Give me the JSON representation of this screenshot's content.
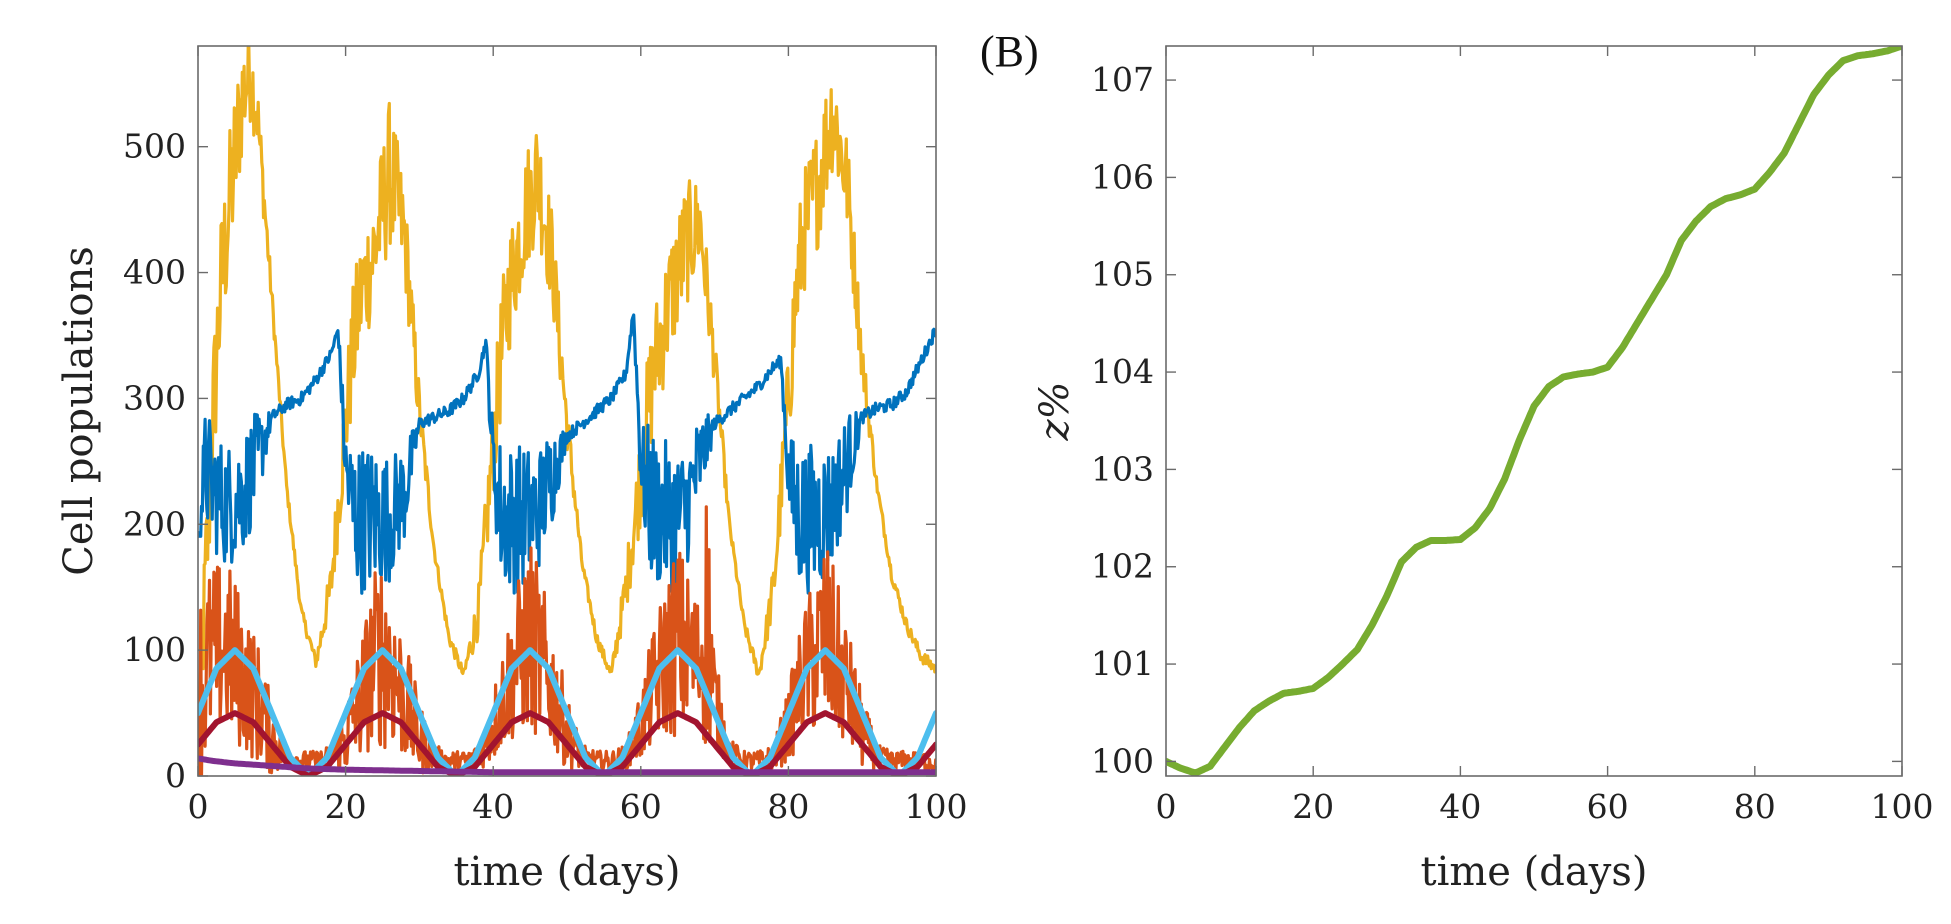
{
  "chart_data": [
    {
      "type": "line",
      "panel": "",
      "title": "",
      "xlabel": "time (days)",
      "ylabel": "Cell populations",
      "xlim": [
        0,
        100
      ],
      "ylim": [
        0,
        580
      ],
      "xticks": [
        0,
        20,
        40,
        60,
        80,
        100
      ],
      "yticks": [
        0,
        100,
        200,
        300,
        400,
        500
      ],
      "grid": false,
      "legend": "none",
      "series": [
        {
          "color": "#EDB120",
          "style": "noisy",
          "x": [
            0,
            1,
            2,
            3,
            4,
            5,
            6,
            7,
            8,
            10,
            12,
            14,
            16,
            18,
            20,
            21,
            22,
            24,
            26,
            28,
            30,
            32,
            34,
            36,
            38,
            40,
            41,
            42,
            44,
            46,
            48,
            50,
            52,
            54,
            56,
            58,
            60,
            61,
            62,
            64,
            66,
            68,
            70,
            72,
            74,
            76,
            78,
            80,
            81,
            82,
            84,
            86,
            88,
            90,
            92,
            94,
            96,
            98,
            100
          ],
          "values": [
            20,
            150,
            280,
            380,
            440,
            490,
            540,
            560,
            530,
            380,
            230,
            130,
            90,
            150,
            280,
            340,
            380,
            420,
            480,
            430,
            290,
            180,
            110,
            80,
            130,
            260,
            330,
            380,
            440,
            480,
            410,
            280,
            170,
            110,
            80,
            150,
            240,
            290,
            330,
            380,
            420,
            440,
            330,
            200,
            120,
            80,
            150,
            300,
            380,
            430,
            470,
            530,
            470,
            330,
            230,
            160,
            120,
            95,
            85
          ],
          "spread": [
            0,
            60,
            60,
            60,
            60,
            60,
            50,
            40,
            30,
            10,
            5,
            5,
            5,
            20,
            40,
            50,
            50,
            50,
            60,
            40,
            20,
            5,
            5,
            5,
            20,
            40,
            50,
            50,
            50,
            50,
            40,
            20,
            5,
            5,
            5,
            20,
            40,
            50,
            50,
            50,
            50,
            40,
            20,
            5,
            5,
            5,
            20,
            40,
            50,
            50,
            50,
            50,
            40,
            20,
            5,
            5,
            5,
            5,
            5
          ]
        },
        {
          "color": "#0072BD",
          "style": "noisy",
          "x": [
            0,
            1,
            2,
            3,
            4,
            6,
            8,
            10,
            12,
            14,
            16,
            18,
            19,
            20,
            21,
            22,
            24,
            26,
            28,
            30,
            32,
            34,
            36,
            38,
            39,
            40,
            41,
            42,
            44,
            46,
            48,
            50,
            52,
            54,
            56,
            58,
            59,
            60,
            61,
            62,
            64,
            66,
            68,
            70,
            72,
            74,
            76,
            78,
            79,
            80,
            81,
            82,
            84,
            86,
            88,
            90,
            92,
            94,
            96,
            98,
            100
          ],
          "values": [
            190,
            245,
            230,
            220,
            215,
            225,
            250,
            285,
            295,
            300,
            315,
            335,
            355,
            245,
            210,
            205,
            205,
            205,
            225,
            280,
            285,
            290,
            300,
            320,
            345,
            250,
            210,
            205,
            205,
            210,
            240,
            270,
            280,
            290,
            300,
            320,
            370,
            250,
            220,
            210,
            205,
            210,
            250,
            280,
            290,
            300,
            310,
            325,
            330,
            240,
            210,
            205,
            205,
            215,
            250,
            285,
            292,
            295,
            305,
            330,
            355
          ],
          "spread": [
            5,
            50,
            50,
            50,
            50,
            50,
            40,
            5,
            5,
            5,
            5,
            5,
            5,
            30,
            60,
            60,
            60,
            50,
            40,
            5,
            5,
            5,
            5,
            5,
            5,
            30,
            60,
            60,
            60,
            50,
            40,
            5,
            5,
            5,
            5,
            5,
            5,
            30,
            60,
            60,
            60,
            50,
            40,
            5,
            5,
            5,
            5,
            5,
            5,
            30,
            60,
            60,
            60,
            50,
            40,
            5,
            5,
            5,
            5,
            5,
            5
          ]
        },
        {
          "color": "#D95319",
          "style": "noisy",
          "x": [
            0,
            2,
            4,
            5,
            6,
            8,
            10,
            12,
            14,
            16,
            18,
            20,
            22,
            24,
            25,
            26,
            28,
            30,
            32,
            34,
            36,
            38,
            40,
            42,
            44,
            45,
            46,
            48,
            50,
            52,
            54,
            56,
            58,
            60,
            62,
            64,
            65,
            66,
            68,
            69,
            70,
            72,
            74,
            76,
            78,
            80,
            82,
            84,
            85,
            86,
            88,
            90,
            92,
            94,
            96,
            98,
            100
          ],
          "values": [
            60,
            100,
            100,
            90,
            80,
            60,
            30,
            15,
            12,
            12,
            15,
            30,
            60,
            95,
            100,
            90,
            60,
            30,
            15,
            12,
            12,
            15,
            40,
            75,
            100,
            110,
            100,
            70,
            35,
            15,
            12,
            12,
            15,
            40,
            75,
            100,
            110,
            100,
            90,
            130,
            60,
            20,
            12,
            12,
            15,
            40,
            80,
            100,
            110,
            100,
            70,
            35,
            15,
            12,
            12,
            12,
            10
          ],
          "spread": [
            90,
            70,
            70,
            70,
            60,
            50,
            30,
            10,
            8,
            8,
            10,
            30,
            50,
            70,
            80,
            70,
            50,
            30,
            10,
            8,
            8,
            10,
            30,
            50,
            70,
            80,
            70,
            50,
            30,
            10,
            8,
            8,
            10,
            30,
            50,
            70,
            80,
            70,
            50,
            120,
            40,
            10,
            8,
            8,
            10,
            30,
            50,
            70,
            80,
            70,
            50,
            30,
            10,
            8,
            8,
            8,
            8
          ]
        },
        {
          "color": "#4DBEEE",
          "style": "smooth",
          "x": [
            0,
            2.5,
            5,
            7.5,
            10,
            12.5,
            15,
            17.5,
            20,
            22.5,
            25,
            27.5,
            30,
            32.5,
            35,
            37.5,
            40,
            42.5,
            45,
            47.5,
            50,
            52.5,
            55,
            57.5,
            60,
            62.5,
            65,
            67.5,
            70,
            72.5,
            75,
            77.5,
            80,
            82.5,
            85,
            87.5,
            90,
            92.5,
            95,
            97.5,
            100
          ],
          "values": [
            50,
            85.4,
            100,
            85.4,
            50,
            14.6,
            0,
            14.6,
            50,
            85.4,
            100,
            85.4,
            50,
            14.6,
            0,
            14.6,
            50,
            85.4,
            100,
            85.4,
            50,
            14.6,
            0,
            14.6,
            50,
            85.4,
            100,
            85.4,
            50,
            14.6,
            0,
            14.6,
            50,
            85.4,
            100,
            85.4,
            50,
            14.6,
            0,
            14.6,
            50
          ]
        },
        {
          "color": "#A2142F",
          "style": "smooth",
          "x": [
            0,
            2.5,
            5,
            7.5,
            10,
            12.5,
            15,
            17.5,
            20,
            22.5,
            25,
            27.5,
            30,
            32.5,
            35,
            37.5,
            40,
            42.5,
            45,
            47.5,
            50,
            52.5,
            55,
            57.5,
            60,
            62.5,
            65,
            67.5,
            70,
            72.5,
            75,
            77.5,
            80,
            82.5,
            85,
            87.5,
            90,
            92.5,
            95,
            97.5,
            100
          ],
          "values": [
            25,
            42.7,
            50,
            42.7,
            25,
            7.3,
            0,
            7.3,
            25,
            42.7,
            50,
            42.7,
            25,
            7.3,
            0,
            7.3,
            25,
            42.7,
            50,
            42.7,
            25,
            7.3,
            0,
            7.3,
            25,
            42.7,
            50,
            42.7,
            25,
            7.3,
            0,
            7.3,
            25,
            42.7,
            50,
            42.7,
            25,
            7.3,
            0,
            7.3,
            25
          ]
        },
        {
          "color": "#7E2F8E",
          "style": "smooth",
          "x": [
            0,
            2,
            5,
            10,
            15,
            20,
            30,
            40,
            50,
            60,
            70,
            80,
            90,
            100
          ],
          "values": [
            14,
            12,
            10,
            8,
            6,
            5,
            4,
            3,
            3,
            3,
            3,
            3,
            3,
            3
          ]
        }
      ]
    },
    {
      "type": "line",
      "panel": "(B)",
      "title": "",
      "xlabel": "time (days)",
      "ylabel": "z%",
      "xlim": [
        0,
        100
      ],
      "ylim": [
        99.85,
        107.35
      ],
      "xticks": [
        0,
        20,
        40,
        60,
        80,
        100
      ],
      "yticks": [
        100,
        101,
        102,
        103,
        104,
        105,
        106,
        107
      ],
      "grid": false,
      "legend": "none",
      "series": [
        {
          "color": "#77AC30",
          "style": "smooth",
          "x": [
            0,
            2,
            4,
            6,
            8,
            10,
            12,
            14,
            16,
            18,
            20,
            22,
            24,
            26,
            28,
            30,
            32,
            34,
            36,
            38,
            40,
            42,
            44,
            46,
            48,
            50,
            52,
            54,
            56,
            58,
            60,
            62,
            64,
            66,
            68,
            70,
            72,
            74,
            76,
            78,
            80,
            82,
            84,
            86,
            88,
            90,
            92,
            94,
            96,
            98,
            100
          ],
          "values": [
            100.0,
            99.93,
            99.88,
            99.95,
            100.15,
            100.35,
            100.52,
            100.62,
            100.7,
            100.72,
            100.75,
            100.86,
            101.0,
            101.15,
            101.4,
            101.7,
            102.05,
            102.2,
            102.27,
            102.27,
            102.28,
            102.4,
            102.6,
            102.9,
            103.3,
            103.65,
            103.85,
            103.95,
            103.98,
            104.0,
            104.05,
            104.25,
            104.5,
            104.75,
            105.0,
            105.35,
            105.55,
            105.7,
            105.78,
            105.82,
            105.88,
            106.05,
            106.25,
            106.55,
            106.85,
            107.05,
            107.2,
            107.25,
            107.27,
            107.3,
            107.35
          ]
        }
      ]
    }
  ]
}
